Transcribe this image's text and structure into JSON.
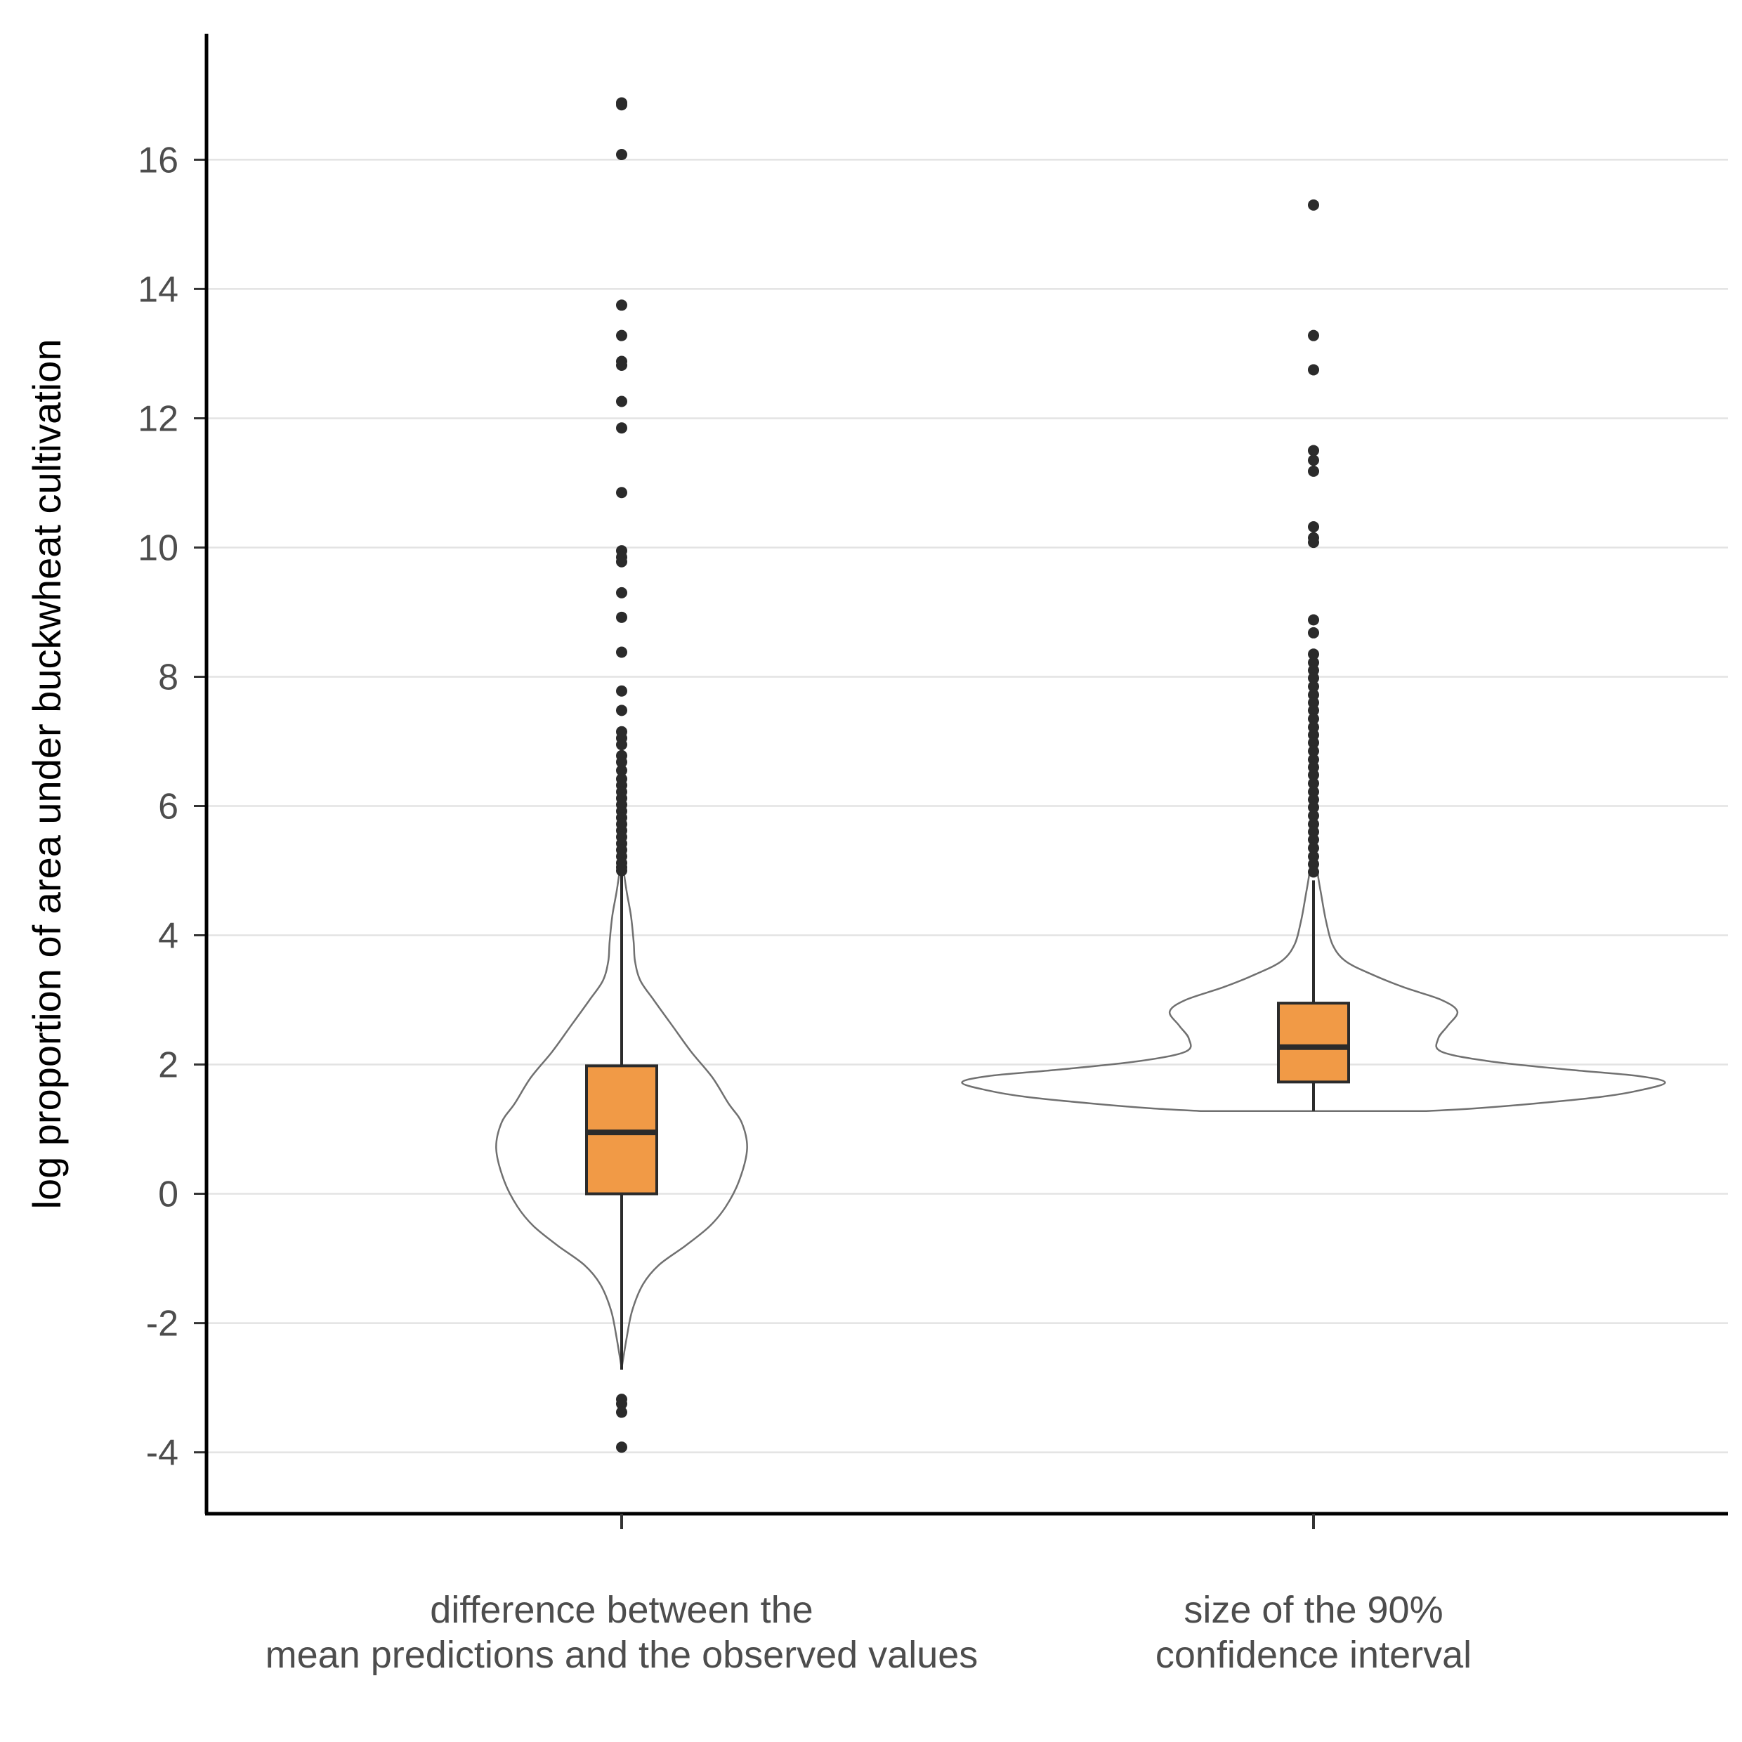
{
  "chart_data": {
    "type": "violin-box",
    "ylabel": "log proportion of area under buckwheat cultivation",
    "xlabel": "",
    "ylim": [
      -4.95,
      17.95
    ],
    "yticks": [
      -4,
      -2,
      0,
      2,
      4,
      6,
      8,
      10,
      12,
      14,
      16
    ],
    "ytick_labels": [
      "-4",
      "-2",
      "0",
      "2",
      "4",
      "6",
      "8",
      "10",
      "12",
      "14",
      "16"
    ],
    "grid": "horizontal",
    "legend": "none",
    "colors": {
      "box_fill": "#f19a46",
      "box_stroke": "#2b2b2b",
      "violin_stroke": "#707070",
      "outlier": "#2b2b2b",
      "grid": "#e3e3e3",
      "axis": "#000000"
    },
    "categories": [
      {
        "label_lines": [
          "difference between the",
          "mean predictions and the observed values"
        ],
        "violin": [
          [
            -2.7,
            0.0
          ],
          [
            -2.2,
            0.02
          ],
          [
            -1.8,
            0.04
          ],
          [
            -1.4,
            0.08
          ],
          [
            -1.1,
            0.14
          ],
          [
            -0.8,
            0.24
          ],
          [
            -0.5,
            0.33
          ],
          [
            -0.2,
            0.39
          ],
          [
            0.2,
            0.44
          ],
          [
            0.7,
            0.47
          ],
          [
            1.1,
            0.45
          ],
          [
            1.4,
            0.4
          ],
          [
            1.8,
            0.34
          ],
          [
            2.2,
            0.26
          ],
          [
            2.6,
            0.19
          ],
          [
            3.0,
            0.12
          ],
          [
            3.3,
            0.07
          ],
          [
            3.6,
            0.05
          ],
          [
            3.9,
            0.045
          ],
          [
            4.3,
            0.035
          ],
          [
            4.7,
            0.018
          ],
          [
            5.1,
            0.005
          ],
          [
            5.5,
            0.0
          ]
        ],
        "box": {
          "q1": 0.0,
          "median": 0.95,
          "q3": 1.98,
          "whisker_low": -2.72,
          "whisker_high": 4.95
        },
        "outliers": [
          16.88,
          16.85,
          16.08,
          13.75,
          13.28,
          12.88,
          12.82,
          12.26,
          11.85,
          10.85,
          9.95,
          9.85,
          9.78,
          9.3,
          8.92,
          8.38,
          7.78,
          7.48,
          7.15,
          7.05,
          6.95,
          6.78,
          6.68,
          6.55,
          6.42,
          6.32,
          6.22,
          6.12,
          6.02,
          5.92,
          5.82,
          5.72,
          5.62,
          5.52,
          5.42,
          5.32,
          5.22,
          5.12,
          5.05,
          5.0,
          -3.18,
          -3.25,
          -3.38,
          -3.92
        ]
      },
      {
        "label_lines": [
          "size of the 90%",
          "confidence interval"
        ],
        "violin": [
          [
            1.28,
            0.35
          ],
          [
            1.32,
            0.5
          ],
          [
            1.4,
            0.7
          ],
          [
            1.5,
            0.9
          ],
          [
            1.6,
            1.02
          ],
          [
            1.72,
            1.1
          ],
          [
            1.82,
            1.02
          ],
          [
            1.92,
            0.8
          ],
          [
            2.05,
            0.55
          ],
          [
            2.2,
            0.4
          ],
          [
            2.4,
            0.39
          ],
          [
            2.6,
            0.42
          ],
          [
            2.82,
            0.45
          ],
          [
            3.0,
            0.4
          ],
          [
            3.2,
            0.28
          ],
          [
            3.4,
            0.18
          ],
          [
            3.6,
            0.1
          ],
          [
            3.85,
            0.06
          ],
          [
            4.2,
            0.04
          ],
          [
            4.6,
            0.025
          ],
          [
            5.0,
            0.012
          ],
          [
            5.5,
            0.005
          ],
          [
            6.0,
            0.0
          ]
        ],
        "box": {
          "q1": 1.73,
          "median": 2.27,
          "q3": 2.95,
          "whisker_low": 1.28,
          "whisker_high": 4.85
        },
        "outliers": [
          15.3,
          13.28,
          12.75,
          11.5,
          11.35,
          11.18,
          10.32,
          10.15,
          10.08,
          8.88,
          8.68,
          8.35,
          8.22,
          8.1,
          7.98,
          7.85,
          7.72,
          7.6,
          7.48,
          7.35,
          7.22,
          7.1,
          6.98,
          6.85,
          6.72,
          6.6,
          6.48,
          6.35,
          6.22,
          6.1,
          5.98,
          5.85,
          5.72,
          5.6,
          5.48,
          5.35,
          5.22,
          5.1,
          4.98
        ]
      }
    ]
  }
}
